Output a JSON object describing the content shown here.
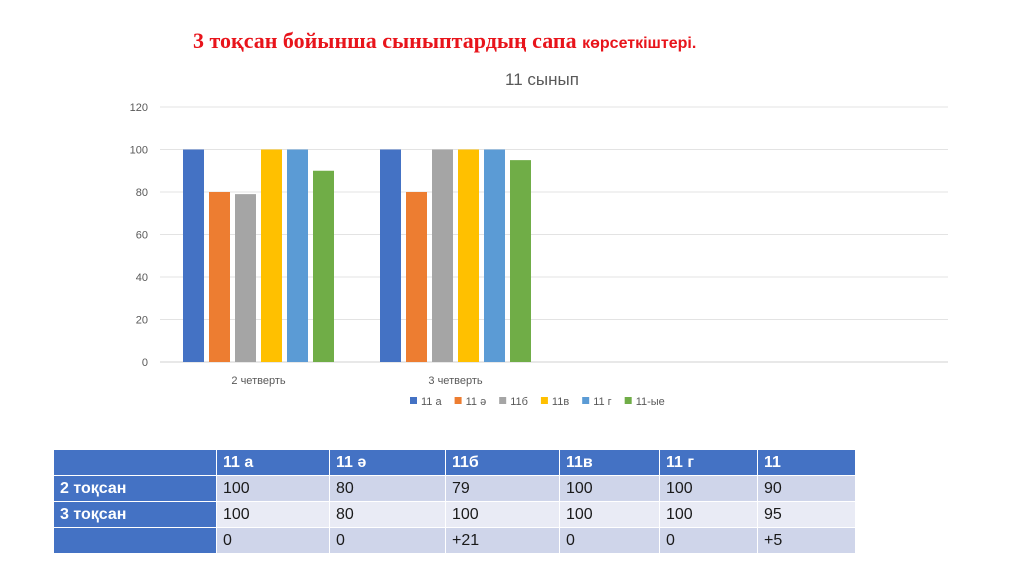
{
  "slide": {
    "title_main": "3 тоқсан бойынша сыныптардың сапа ",
    "title_small": "көрсеткіштері."
  },
  "chart_data": {
    "type": "bar",
    "title": "11 сынып",
    "categories": [
      "2 четверть",
      "3 четверть",
      "",
      ""
    ],
    "series": [
      {
        "name": "11 а",
        "color": "#4472c4",
        "values": [
          100,
          100,
          null,
          null
        ]
      },
      {
        "name": "11 ә",
        "color": "#ed7d31",
        "values": [
          80,
          80,
          null,
          null
        ]
      },
      {
        "name": "11б",
        "color": "#a5a5a5",
        "values": [
          79,
          100,
          null,
          null
        ]
      },
      {
        "name": "11в",
        "color": "#ffc000",
        "values": [
          100,
          100,
          null,
          null
        ]
      },
      {
        "name": "11 г",
        "color": "#5b9bd5",
        "values": [
          100,
          100,
          null,
          null
        ]
      },
      {
        "name": "11-ые",
        "color": "#70ad47",
        "values": [
          90,
          95,
          null,
          null
        ]
      }
    ],
    "ylim": [
      0,
      120
    ],
    "yticks": [
      0,
      20,
      40,
      60,
      80,
      100,
      120
    ],
    "grid": true,
    "legend": "bottom"
  },
  "table": {
    "header": [
      "",
      "11 а",
      "11 ә",
      "11б",
      "11в",
      "11 г",
      "11"
    ],
    "rows": [
      [
        "2 тоқсан",
        "100",
        "80",
        "79",
        "100",
        "100",
        "90"
      ],
      [
        "3  тоқсан",
        "100",
        "80",
        "100",
        "100",
        "100",
        "95"
      ],
      [
        "",
        "0",
        "0",
        "+21",
        "0",
        "0",
        "+5"
      ]
    ]
  }
}
